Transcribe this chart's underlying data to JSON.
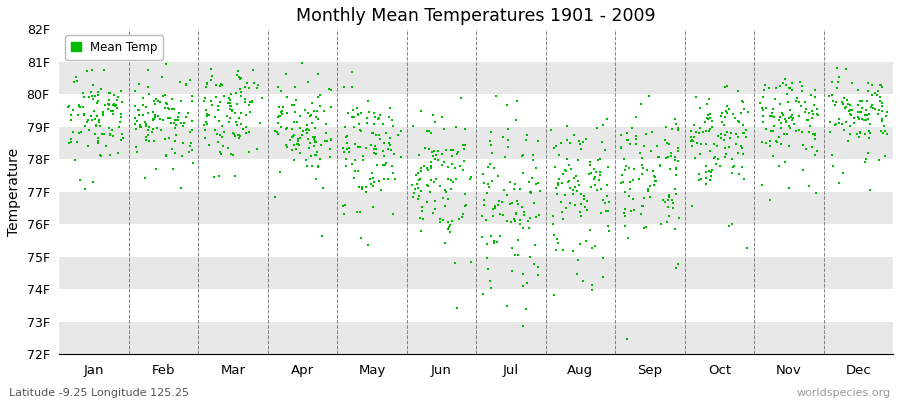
{
  "title": "Monthly Mean Temperatures 1901 - 2009",
  "ylabel": "Temperature",
  "ylim": [
    72,
    82
  ],
  "ytick_labels": [
    "72F",
    "73F",
    "74F",
    "75F",
    "76F",
    "77F",
    "78F",
    "79F",
    "80F",
    "81F",
    "82F"
  ],
  "ytick_values": [
    72,
    73,
    74,
    75,
    76,
    77,
    78,
    79,
    80,
    81,
    82
  ],
  "months": [
    "Jan",
    "Feb",
    "Mar",
    "Apr",
    "May",
    "Jun",
    "Jul",
    "Aug",
    "Sep",
    "Oct",
    "Nov",
    "Dec"
  ],
  "dot_color": "#00BB00",
  "bg_color": "#ffffff",
  "band_colors": [
    "#e8e8e8",
    "#ffffff"
  ],
  "legend_label": "Mean Temp",
  "caption_left": "Latitude -9.25 Longitude 125.25",
  "caption_right": "worldspecies.org",
  "mean_temps": [
    79.3,
    79.2,
    79.5,
    79.0,
    78.5,
    77.5,
    76.8,
    77.0,
    77.8,
    78.8,
    79.3,
    79.4
  ],
  "std_temps": [
    0.65,
    0.65,
    0.7,
    0.75,
    0.85,
    1.0,
    1.3,
    1.2,
    1.0,
    0.8,
    0.7,
    0.65
  ],
  "skew_low": [
    0.3,
    0.3,
    0.3,
    0.4,
    0.5,
    0.6,
    0.7,
    0.7,
    0.6,
    0.5,
    0.4,
    0.3
  ],
  "n_years": 109,
  "random_seed": 17,
  "dot_size": 3,
  "figsize": [
    9.0,
    4.0
  ],
  "dpi": 100
}
